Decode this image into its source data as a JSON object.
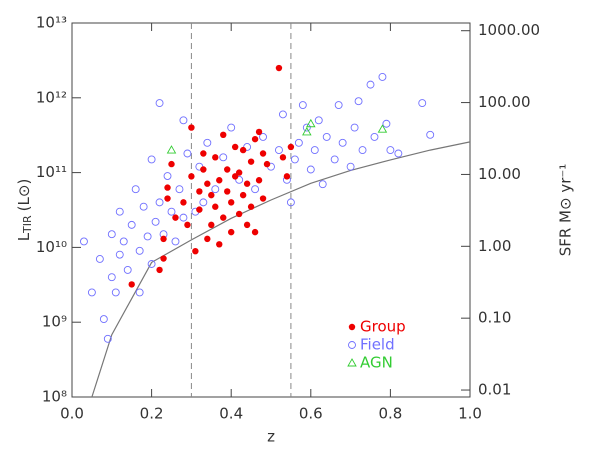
{
  "chart_data": {
    "type": "scatter",
    "xlabel": "z",
    "ylabel": "L",
    "ylabel_sub": "TIR",
    "ylabel_unit": "(L⊙)",
    "y2label": "SFR M⊙ yr⁻¹",
    "xlim": [
      0,
      1
    ],
    "xticks": [
      {
        "value": 0,
        "label": "0.0"
      },
      {
        "value": 0.2,
        "label": "0.2"
      },
      {
        "value": 0.4,
        "label": "0.4"
      },
      {
        "value": 0.6,
        "label": "0.6"
      },
      {
        "value": 0.8,
        "label": "0.8"
      },
      {
        "value": 1,
        "label": "1.0"
      }
    ],
    "ylim": [
      100000000.0,
      10000000000000.0
    ],
    "ylog": true,
    "yticks": [
      {
        "value": 100000000.0,
        "label": "10⁸"
      },
      {
        "value": 1000000000.0,
        "label": "10⁹"
      },
      {
        "value": 10000000000.0,
        "label": "10¹⁰"
      },
      {
        "value": 100000000000.0,
        "label": "10¹¹"
      },
      {
        "value": 1000000000000.0,
        "label": "10¹²"
      },
      {
        "value": 10000000000000.0,
        "label": "10¹³"
      }
    ],
    "y2lim": [
      0.008,
      1280
    ],
    "y2log": true,
    "y2ticks": [
      {
        "value": 0.01,
        "label": "0.01"
      },
      {
        "value": 0.1,
        "label": "0.10"
      },
      {
        "value": 1,
        "label": "1.00"
      },
      {
        "value": 10,
        "label": "10.00"
      },
      {
        "value": 100,
        "label": "100.00"
      },
      {
        "value": 1000,
        "label": "1000.00"
      }
    ],
    "vlines": [
      0.3,
      0.55
    ],
    "legend": "lower right",
    "lines": [
      {
        "color": "#777777",
        "x": [
          0.05,
          0.1,
          0.2,
          0.3,
          0.4,
          0.5,
          0.6,
          0.7,
          0.8,
          0.9,
          1.0
        ],
        "values": [
          100000000.0,
          680000000.0,
          6300000000.0,
          12600000000.0,
          24500000000.0,
          43000000000.0,
          72000000000.0,
          107000000000.0,
          148000000000.0,
          200000000000.0,
          257000000000.0
        ]
      }
    ],
    "series": [
      {
        "name": "Field",
        "color": "#7070ff",
        "marker": "circle-open",
        "x": [
          0.03,
          0.05,
          0.07,
          0.08,
          0.09,
          0.1,
          0.1,
          0.11,
          0.12,
          0.12,
          0.13,
          0.14,
          0.15,
          0.16,
          0.17,
          0.17,
          0.18,
          0.19,
          0.2,
          0.2,
          0.21,
          0.22,
          0.22,
          0.23,
          0.24,
          0.25,
          0.26,
          0.27,
          0.28,
          0.28,
          0.29,
          0.31,
          0.32,
          0.33,
          0.34,
          0.36,
          0.38,
          0.4,
          0.42,
          0.44,
          0.46,
          0.48,
          0.5,
          0.52,
          0.53,
          0.54,
          0.55,
          0.56,
          0.57,
          0.58,
          0.59,
          0.6,
          0.61,
          0.62,
          0.63,
          0.64,
          0.66,
          0.67,
          0.68,
          0.7,
          0.71,
          0.72,
          0.73,
          0.75,
          0.76,
          0.78,
          0.79,
          0.8,
          0.82,
          0.88,
          0.9
        ],
        "values": [
          12000000000.0,
          2500000000.0,
          7000000000.0,
          1100000000.0,
          600000000.0,
          4000000000.0,
          15000000000.0,
          2500000000.0,
          8000000000.0,
          30000000000.0,
          12000000000.0,
          5000000000.0,
          20000000000.0,
          60000000000.0,
          9000000000.0,
          2500000000.0,
          35000000000.0,
          14000000000.0,
          6000000000.0,
          150000000000.0,
          22000000000.0,
          850000000000.0,
          40000000000.0,
          15000000000.0,
          90000000000.0,
          30000000000.0,
          12000000000.0,
          60000000000.0,
          25000000000.0,
          500000000000.0,
          180000000000.0,
          30000000000.0,
          120000000000.0,
          40000000000.0,
          250000000000.0,
          60000000000.0,
          160000000000.0,
          400000000000.0,
          80000000000.0,
          220000000000.0,
          60000000000.0,
          300000000000.0,
          120000000000.0,
          200000000000.0,
          600000000000.0,
          80000000000.0,
          40000000000.0,
          150000000000.0,
          250000000000.0,
          800000000000.0,
          400000000000.0,
          110000000000.0,
          200000000000.0,
          500000000000.0,
          70000000000.0,
          300000000000.0,
          150000000000.0,
          800000000000.0,
          250000000000.0,
          120000000000.0,
          400000000000.0,
          900000000000.0,
          200000000000.0,
          1500000000000.0,
          300000000000.0,
          1900000000000.0,
          450000000000.0,
          200000000000.0,
          180000000000.0,
          850000000000.0,
          320000000000.0
        ]
      },
      {
        "name": "Group",
        "color": "#ee0000",
        "marker": "circle-filled",
        "x": [
          0.15,
          0.22,
          0.23,
          0.23,
          0.24,
          0.24,
          0.25,
          0.26,
          0.28,
          0.29,
          0.3,
          0.3,
          0.31,
          0.32,
          0.32,
          0.33,
          0.33,
          0.34,
          0.34,
          0.35,
          0.35,
          0.36,
          0.36,
          0.37,
          0.37,
          0.38,
          0.38,
          0.39,
          0.39,
          0.4,
          0.4,
          0.41,
          0.41,
          0.42,
          0.42,
          0.43,
          0.43,
          0.44,
          0.44,
          0.45,
          0.45,
          0.46,
          0.46,
          0.47,
          0.47,
          0.48,
          0.48,
          0.49,
          0.52,
          0.53,
          0.54,
          0.55
        ],
        "values": [
          3200000000.0,
          5000000000.0,
          7100000000.0,
          13000000000.0,
          45000000000.0,
          63000000000.0,
          130000000000.0,
          25000000000.0,
          40000000000.0,
          20000000000.0,
          89000000000.0,
          400000000000.0,
          8900000000.0,
          32000000000.0,
          56000000000.0,
          110000000000.0,
          180000000000.0,
          13000000000.0,
          71000000000.0,
          20000000000.0,
          50000000000.0,
          160000000000.0,
          35000000000.0,
          11000000000.0,
          79000000000.0,
          320000000000.0,
          25000000000.0,
          56000000000.0,
          110000000000.0,
          16000000000.0,
          40000000000.0,
          220000000000.0,
          89000000000.0,
          28000000000.0,
          100000000000.0,
          50000000000.0,
          200000000000.0,
          20000000000.0,
          71000000000.0,
          35000000000.0,
          140000000000.0,
          280000000000.0,
          16000000000.0,
          79000000000.0,
          350000000000.0,
          45000000000.0,
          180000000000.0,
          130000000000.0,
          2500000000000.0,
          160000000000.0,
          89000000000.0,
          220000000000.0
        ]
      },
      {
        "name": "AGN",
        "color": "#33cc33",
        "marker": "triangle-open",
        "x": [
          0.25,
          0.59,
          0.6,
          0.78
        ],
        "values": [
          200000000000.0,
          350000000000.0,
          450000000000.0,
          380000000000.0
        ]
      }
    ]
  }
}
